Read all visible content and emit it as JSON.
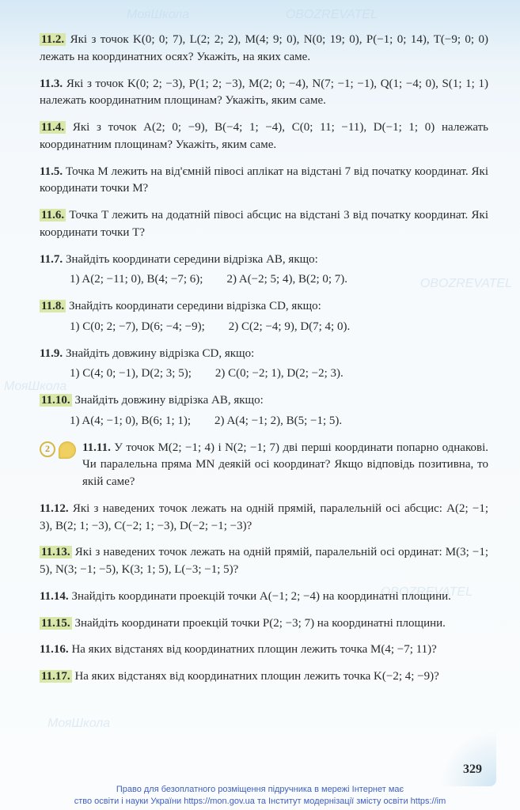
{
  "watermarks": {
    "a": "МояШкола",
    "b": "OBOZREVATEL"
  },
  "problems": [
    {
      "num": "11.2.",
      "hl": true,
      "text": "Які з точок K(0; 0; 7), L(2; 2; 2), M(4; 9; 0), N(0; 19; 0), P(−1; 0; 14), T(−9; 0; 0) лежать на координатних осях? Укажіть, на яких саме."
    },
    {
      "num": "11.3.",
      "hl": false,
      "text": "Які з точок K(0; 2; −3), P(1; 2; −3), M(2; 0; −4), N(7; −1; −1), Q(1; −4; 0), S(1; 1; 1) належать координатним площинам? Укажіть, яким саме."
    },
    {
      "num": "11.4.",
      "hl": true,
      "text": "Які з точок A(2; 0; −9), B(−4; 1; −4), C(0; 11; −11), D(−1; 1; 0) належать координатним площинам? Укажіть, яким саме."
    },
    {
      "num": "11.5.",
      "hl": false,
      "text": "Точка M лежить на від'ємній півосі аплікат на відстані 7 від початку координат. Які координати точки M?"
    },
    {
      "num": "11.6.",
      "hl": true,
      "text": "Точка T лежить на додатній півосі абсцис на відстані 3 від початку координат. Які координати точки T?"
    },
    {
      "num": "11.7.",
      "hl": false,
      "text": "Знайдіть координати середини відрізка AB, якщо:",
      "subs": [
        {
          "n": "1)",
          "s": "A(2; −11; 0), B(4; −7; 6);"
        },
        {
          "n": "2)",
          "s": "A(−2; 5; 4), B(2; 0; 7)."
        }
      ]
    },
    {
      "num": "11.8.",
      "hl": true,
      "text": "Знайдіть координати середини відрізка CD, якщо:",
      "subs": [
        {
          "n": "1)",
          "s": "C(0; 2; −7), D(6; −4; −9);"
        },
        {
          "n": "2)",
          "s": "C(2; −4; 9), D(7; 4; 0)."
        }
      ]
    },
    {
      "num": "11.9.",
      "hl": false,
      "text": "Знайдіть довжину відрізка CD, якщо:",
      "subs": [
        {
          "n": "1)",
          "s": "C(4; 0; −1), D(2; 3; 5);"
        },
        {
          "n": "2)",
          "s": "C(0; −2; 1), D(2; −2; 3)."
        }
      ]
    },
    {
      "num": "11.10.",
      "hl": true,
      "text": "Знайдіть довжину відрізка AB, якщо:",
      "subs": [
        {
          "n": "1)",
          "s": "A(4; −1; 0), B(6; 1; 1);"
        },
        {
          "n": "2)",
          "s": "A(4; −1; 2), B(5; −1; 5)."
        }
      ]
    },
    {
      "num": "11.11.",
      "hl": false,
      "icon": true,
      "text": "У точок M(2; −1; 4) і N(2; −1; 7) дві перші координати попарно однакові. Чи паралельна пряма MN деякій осі координат? Якщо відповідь позитивна, то якій саме?"
    },
    {
      "num": "11.12.",
      "hl": false,
      "text": "Які з наведених точок лежать на одній прямій, паралельній осі абсцис: A(2; −1; 3), B(2; 1; −3), C(−2; 1; −3), D(−2; −1; −3)?"
    },
    {
      "num": "11.13.",
      "hl": true,
      "text": "Які з наведених точок лежать на одній прямій, паралельній осі ординат: M(3; −1; 5), N(3; −1; −5), K(3; 1; 5), L(−3; −1; 5)?"
    },
    {
      "num": "11.14.",
      "hl": false,
      "text": "Знайдіть координати проекцій точки A(−1; 2; −4) на координатні площини."
    },
    {
      "num": "11.15.",
      "hl": true,
      "text": "Знайдіть координати проекцій точки P(2; −3; 7) на координатні площини."
    },
    {
      "num": "11.16.",
      "hl": false,
      "text": "На яких відстанях від координатних площин лежить точка M(4; −7; 11)?"
    },
    {
      "num": "11.17.",
      "hl": true,
      "text": "На яких відстанях від координатних площин лежить точка K(−2; 4; −9)?"
    }
  ],
  "icon": {
    "digit": "2"
  },
  "page_number": "329",
  "footer_line1": "Право для безоплатного розміщення підручника в мережі Інтернет має",
  "footer_line2": "ство освіти і науки України https://mon.gov.ua та Інститут модернізації змісту освіти  https://im"
}
